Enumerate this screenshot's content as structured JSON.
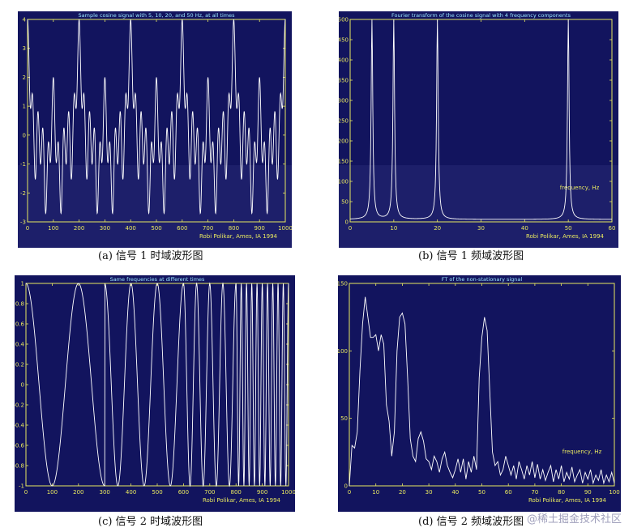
{
  "colors": {
    "bg": "#12145e",
    "bg_light": "#1d1f6a",
    "axis": "#e8e860",
    "trace": "#ffffff",
    "title": "#9be8ff",
    "tick": "#e8e860"
  },
  "captions": {
    "a": "(a) 信号 1 时域波形图",
    "b": "(b) 信号 1 频域波形图",
    "c": "(c) 信号 2 时域波形图",
    "d": "(d) 信号 2 频域波形图"
  },
  "watermark": "@稀土掘金技术社区",
  "chart_data": [
    {
      "id": "a",
      "type": "line",
      "title": "Sample cosine signal with 5, 10, 20, and 50 Hz, at all times",
      "credit": "Robi Polikar, Ames, IA  1994",
      "xlim": [
        0,
        1000
      ],
      "ylim": [
        -3,
        4
      ],
      "xticks": [
        0,
        100,
        200,
        300,
        400,
        500,
        600,
        700,
        800,
        900,
        1000
      ],
      "yticks": [
        -3,
        -2,
        -1,
        0,
        1,
        2,
        3,
        4
      ],
      "signal": {
        "kind": "sum_cos",
        "freqs_hz": [
          5,
          10,
          20,
          50
        ],
        "samples": 1000,
        "sample_rate": 1000
      }
    },
    {
      "id": "b",
      "type": "line",
      "title": "Fourier transform of the cosine signal with 4 frequency components",
      "credit": "Robi Polikar, Ames, IA  1994",
      "annotation": "frequency, Hz",
      "xlim": [
        0,
        60
      ],
      "ylim": [
        0,
        500
      ],
      "xticks": [
        0,
        10,
        20,
        30,
        40,
        50,
        60
      ],
      "yticks": [
        0,
        50,
        100,
        150,
        200,
        250,
        300,
        350,
        400,
        450,
        500
      ],
      "peaks_hz": [
        5,
        10,
        20,
        50
      ],
      "peak_value": 500
    },
    {
      "id": "c",
      "type": "line",
      "title": "Same frequencies at different times",
      "credit": "Robi Polikar, Ames, IA  1994",
      "xlim": [
        0,
        1000
      ],
      "ylim": [
        -1,
        1
      ],
      "xticks": [
        0,
        100,
        200,
        300,
        400,
        500,
        600,
        700,
        800,
        900,
        1000
      ],
      "yticks": [
        -1,
        -0.8,
        -0.6,
        -0.4,
        -0.2,
        0,
        0.2,
        0.4,
        0.6,
        0.8,
        1
      ],
      "segments": [
        {
          "from": 0,
          "to": 300,
          "freq_hz": 5
        },
        {
          "from": 300,
          "to": 600,
          "freq_hz": 10
        },
        {
          "from": 600,
          "to": 800,
          "freq_hz": 20
        },
        {
          "from": 800,
          "to": 1000,
          "freq_hz": 50
        }
      ]
    },
    {
      "id": "d",
      "type": "line",
      "title": "FT of the non-stationary signal",
      "credit": "Robi Polikar, Ames, IA  1994",
      "annotation": "frequency, Hz",
      "xlim": [
        0,
        100
      ],
      "ylim": [
        0,
        150
      ],
      "xticks": [
        0,
        10,
        20,
        30,
        40,
        50,
        60,
        70,
        80,
        90,
        100
      ],
      "yticks": [
        0,
        50,
        100,
        150
      ],
      "x": [
        0,
        1,
        2,
        3,
        4,
        5,
        6,
        7,
        8,
        9,
        10,
        11,
        12,
        13,
        14,
        15,
        16,
        17,
        18,
        19,
        20,
        21,
        22,
        23,
        24,
        25,
        26,
        27,
        28,
        29,
        30,
        31,
        32,
        33,
        34,
        35,
        36,
        37,
        38,
        39,
        40,
        41,
        42,
        43,
        44,
        45,
        46,
        47,
        48,
        49,
        50,
        51,
        52,
        53,
        54,
        55,
        56,
        57,
        58,
        59,
        60,
        61,
        62,
        63,
        64,
        65,
        66,
        67,
        68,
        69,
        70,
        71,
        72,
        73,
        74,
        75,
        76,
        77,
        78,
        79,
        80,
        81,
        82,
        83,
        84,
        85,
        86,
        87,
        88,
        89,
        90,
        91,
        92,
        93,
        94,
        95,
        96,
        97,
        98,
        99,
        100
      ],
      "y": [
        0,
        30,
        28,
        40,
        85,
        120,
        140,
        125,
        110,
        110,
        112,
        100,
        112,
        105,
        60,
        48,
        22,
        40,
        100,
        125,
        128,
        120,
        80,
        35,
        22,
        18,
        35,
        40,
        33,
        20,
        18,
        12,
        22,
        18,
        10,
        20,
        25,
        15,
        10,
        6,
        12,
        20,
        10,
        20,
        5,
        18,
        10,
        22,
        12,
        80,
        110,
        125,
        115,
        70,
        25,
        15,
        18,
        8,
        12,
        22,
        15,
        8,
        15,
        5,
        18,
        12,
        5,
        15,
        8,
        18,
        6,
        16,
        5,
        12,
        4,
        10,
        15,
        3,
        12,
        5,
        15,
        3,
        10,
        5,
        14,
        3,
        8,
        12,
        2,
        10,
        5,
        12,
        2,
        8,
        4,
        12,
        2,
        8,
        3,
        10,
        2
      ]
    }
  ]
}
